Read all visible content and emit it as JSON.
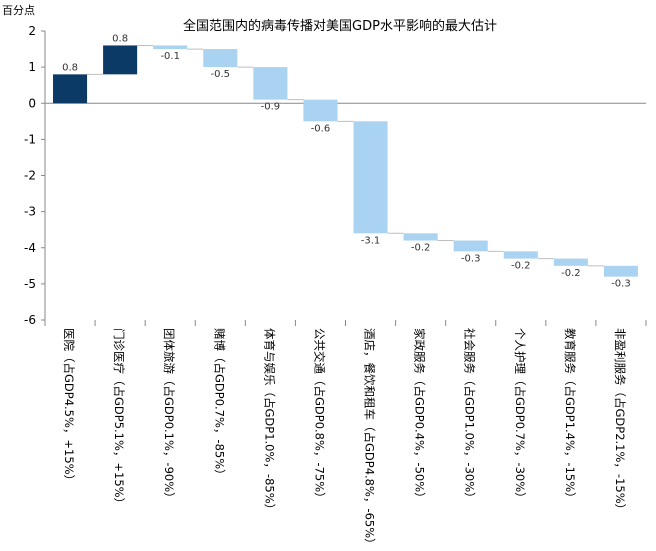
{
  "chart_data": {
    "type": "bar",
    "subtype": "waterfall",
    "title": "全国范围内的病毒传播对美国GDP水平影响的最大估计",
    "ylabel": "百分点",
    "ylim": [
      -6,
      2
    ],
    "yticks": [
      "2",
      "1",
      "0",
      "-1",
      "-2",
      "-3",
      "-4",
      "-5",
      "-6"
    ],
    "categories": [
      "医院（占GDP4.5%，+15%）",
      "门诊医疗（占GDP5.1%，+15%）",
      "团体旅游（占GDP0.1%，-90%）",
      "赌博（占GDP0.7%，-85%）",
      "体育与娱乐（占GDP1.0%，-85%）",
      "公共交通（占GDP0.8%，-75%）",
      "酒店，餐饮和租车（占GDP4.8%，-65%）",
      "家政服务（占GDP0.4%，-50%）",
      "社会服务（占GDP1.0%，-30%）",
      "个人护理（占GDP0.7%，-30%）",
      "教育服务（占GDP1.4%，-15%）",
      "非盈利服务（占GDP2.1%，-15%）"
    ],
    "values": [
      0.8,
      0.8,
      -0.1,
      -0.5,
      -0.9,
      -0.6,
      -3.1,
      -0.2,
      -0.3,
      -0.2,
      -0.2,
      -0.3
    ],
    "value_labels": [
      "0.8",
      "0.8",
      "-0.1",
      "-0.5",
      "-0.9",
      "-0.6",
      "-3.1",
      "-0.2",
      "-0.3",
      "-0.2",
      "-0.2",
      "-0.3"
    ],
    "grid": false,
    "legend": "none",
    "colors": {
      "positive": "#0b3a66",
      "negative": "#a9d3f0",
      "connector": "#bfbfbf",
      "axis": "#888888"
    }
  }
}
